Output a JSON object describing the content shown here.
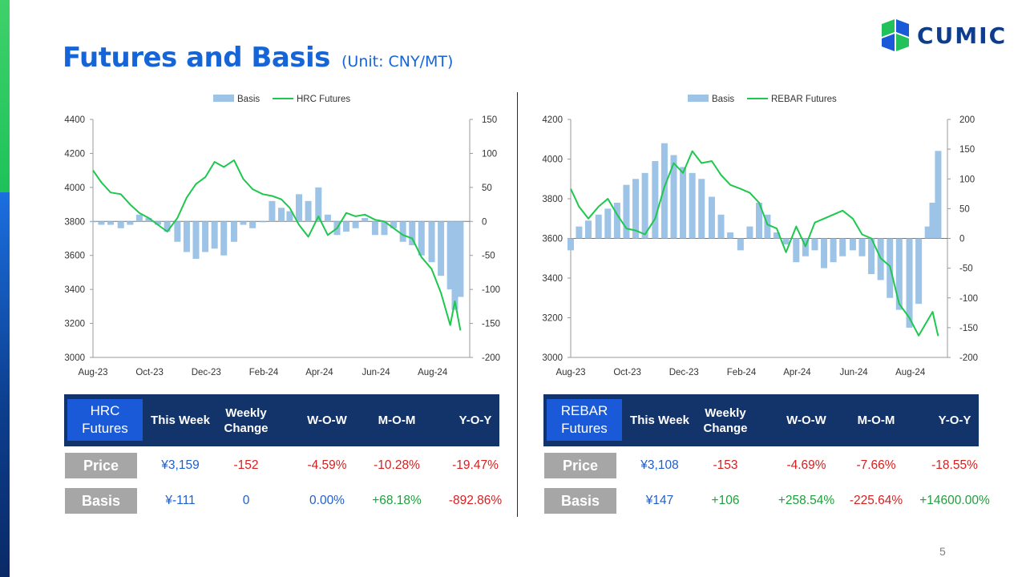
{
  "title": "Futures and Basis",
  "unit": "(Unit: CNY/MT)",
  "logo": {
    "text": "CUMIC"
  },
  "page_number": "5",
  "colors": {
    "basis": "#9dc3e6",
    "futures": "#1ec84e",
    "header_bg": "#13336b",
    "corner_bg": "#1a5ad8",
    "label_bg": "#a6a6a6",
    "blue": "#1f5fcc",
    "red": "#d62020",
    "green": "#1ea03c"
  },
  "chart_data": [
    {
      "type": "bar+line",
      "legend": [
        "Basis",
        "HRC Futures"
      ],
      "x_ticks": [
        "Aug-23",
        "Oct-23",
        "Dec-23",
        "Feb-24",
        "Apr-24",
        "Jun-24",
        "Aug-24"
      ],
      "y_left": {
        "ticks": [
          "4400",
          "4200",
          "4000",
          "3800",
          "3600",
          "3400",
          "3200",
          "3000"
        ],
        "range": [
          3000,
          4400
        ]
      },
      "y_right": {
        "ticks": [
          "150",
          "100",
          "50",
          "0",
          "-50",
          "-100",
          "-150",
          "-200"
        ],
        "range": [
          -200,
          150
        ]
      },
      "futures": [
        [
          "2023-08-01",
          4100
        ],
        [
          "2023-08-10",
          4030
        ],
        [
          "2023-08-20",
          3970
        ],
        [
          "2023-08-31",
          3960
        ],
        [
          "2023-09-10",
          3900
        ],
        [
          "2023-09-20",
          3850
        ],
        [
          "2023-09-30",
          3820
        ],
        [
          "2023-10-10",
          3780
        ],
        [
          "2023-10-20",
          3740
        ],
        [
          "2023-10-31",
          3820
        ],
        [
          "2023-11-10",
          3940
        ],
        [
          "2023-11-20",
          4020
        ],
        [
          "2023-11-30",
          4060
        ],
        [
          "2023-12-10",
          4150
        ],
        [
          "2023-12-20",
          4120
        ],
        [
          "2023-12-31",
          4160
        ],
        [
          "2024-01-10",
          4050
        ],
        [
          "2024-01-20",
          3990
        ],
        [
          "2024-01-31",
          3960
        ],
        [
          "2024-02-10",
          3950
        ],
        [
          "2024-02-20",
          3930
        ],
        [
          "2024-02-29",
          3880
        ],
        [
          "2024-03-10",
          3780
        ],
        [
          "2024-03-20",
          3710
        ],
        [
          "2024-03-31",
          3830
        ],
        [
          "2024-04-10",
          3720
        ],
        [
          "2024-04-20",
          3760
        ],
        [
          "2024-04-30",
          3850
        ],
        [
          "2024-05-10",
          3830
        ],
        [
          "2024-05-20",
          3840
        ],
        [
          "2024-05-31",
          3810
        ],
        [
          "2024-06-10",
          3800
        ],
        [
          "2024-06-20",
          3760
        ],
        [
          "2024-06-30",
          3720
        ],
        [
          "2024-07-10",
          3700
        ],
        [
          "2024-07-20",
          3590
        ],
        [
          "2024-07-31",
          3520
        ],
        [
          "2024-08-10",
          3380
        ],
        [
          "2024-08-20",
          3190
        ],
        [
          "2024-08-25",
          3330
        ],
        [
          "2024-08-31",
          3159
        ]
      ],
      "basis": [
        [
          "2023-08-01",
          0
        ],
        [
          "2023-08-10",
          -5
        ],
        [
          "2023-08-20",
          -5
        ],
        [
          "2023-08-31",
          -10
        ],
        [
          "2023-09-10",
          -5
        ],
        [
          "2023-09-20",
          10
        ],
        [
          "2023-09-30",
          5
        ],
        [
          "2023-10-10",
          -5
        ],
        [
          "2023-10-20",
          -15
        ],
        [
          "2023-10-31",
          -30
        ],
        [
          "2023-11-10",
          -45
        ],
        [
          "2023-11-20",
          -55
        ],
        [
          "2023-11-30",
          -45
        ],
        [
          "2023-12-10",
          -40
        ],
        [
          "2023-12-20",
          -50
        ],
        [
          "2023-12-31",
          -30
        ],
        [
          "2024-01-10",
          -5
        ],
        [
          "2024-01-20",
          -10
        ],
        [
          "2024-01-31",
          0
        ],
        [
          "2024-02-10",
          30
        ],
        [
          "2024-02-20",
          20
        ],
        [
          "2024-02-29",
          15
        ],
        [
          "2024-03-10",
          40
        ],
        [
          "2024-03-20",
          30
        ],
        [
          "2024-03-31",
          50
        ],
        [
          "2024-04-10",
          10
        ],
        [
          "2024-04-20",
          -20
        ],
        [
          "2024-04-30",
          -15
        ],
        [
          "2024-05-10",
          -10
        ],
        [
          "2024-05-20",
          5
        ],
        [
          "2024-05-31",
          -20
        ],
        [
          "2024-06-10",
          -20
        ],
        [
          "2024-06-20",
          -10
        ],
        [
          "2024-06-30",
          -30
        ],
        [
          "2024-07-10",
          -35
        ],
        [
          "2024-07-20",
          -50
        ],
        [
          "2024-07-31",
          -60
        ],
        [
          "2024-08-10",
          -80
        ],
        [
          "2024-08-20",
          -100
        ],
        [
          "2024-08-25",
          -130
        ],
        [
          "2024-08-31",
          -111
        ]
      ]
    },
    {
      "type": "bar+line",
      "legend": [
        "Basis",
        "REBAR Futures"
      ],
      "x_ticks": [
        "Aug-23",
        "Oct-23",
        "Dec-23",
        "Feb-24",
        "Apr-24",
        "Jun-24",
        "Aug-24"
      ],
      "y_left": {
        "ticks": [
          "4200",
          "4000",
          "3800",
          "3600",
          "3400",
          "3200",
          "3000"
        ],
        "range": [
          3000,
          4200
        ]
      },
      "y_right": {
        "ticks": [
          "200",
          "150",
          "100",
          "50",
          "0",
          "-50",
          "-100",
          "-150",
          "-200"
        ],
        "range": [
          -200,
          200
        ]
      },
      "futures": [
        [
          "2023-08-01",
          3850
        ],
        [
          "2023-08-10",
          3760
        ],
        [
          "2023-08-20",
          3700
        ],
        [
          "2023-08-31",
          3760
        ],
        [
          "2023-09-10",
          3800
        ],
        [
          "2023-09-20",
          3720
        ],
        [
          "2023-09-30",
          3650
        ],
        [
          "2023-10-10",
          3640
        ],
        [
          "2023-10-20",
          3620
        ],
        [
          "2023-10-31",
          3700
        ],
        [
          "2023-11-10",
          3860
        ],
        [
          "2023-11-20",
          3980
        ],
        [
          "2023-11-30",
          3930
        ],
        [
          "2023-12-10",
          4040
        ],
        [
          "2023-12-20",
          3980
        ],
        [
          "2023-12-31",
          3990
        ],
        [
          "2024-01-10",
          3920
        ],
        [
          "2024-01-20",
          3870
        ],
        [
          "2024-01-31",
          3850
        ],
        [
          "2024-02-10",
          3830
        ],
        [
          "2024-02-20",
          3780
        ],
        [
          "2024-02-29",
          3670
        ],
        [
          "2024-03-10",
          3650
        ],
        [
          "2024-03-20",
          3530
        ],
        [
          "2024-03-31",
          3660
        ],
        [
          "2024-04-10",
          3560
        ],
        [
          "2024-04-20",
          3680
        ],
        [
          "2024-04-30",
          3700
        ],
        [
          "2024-05-10",
          3720
        ],
        [
          "2024-05-20",
          3740
        ],
        [
          "2024-05-31",
          3700
        ],
        [
          "2024-06-10",
          3620
        ],
        [
          "2024-06-20",
          3600
        ],
        [
          "2024-06-30",
          3500
        ],
        [
          "2024-07-10",
          3460
        ],
        [
          "2024-07-20",
          3270
        ],
        [
          "2024-07-31",
          3200
        ],
        [
          "2024-08-10",
          3110
        ],
        [
          "2024-08-20",
          3190
        ],
        [
          "2024-08-25",
          3230
        ],
        [
          "2024-08-31",
          3108
        ]
      ],
      "basis": [
        [
          "2023-08-01",
          -20
        ],
        [
          "2023-08-10",
          20
        ],
        [
          "2023-08-20",
          30
        ],
        [
          "2023-08-31",
          40
        ],
        [
          "2023-09-10",
          50
        ],
        [
          "2023-09-20",
          60
        ],
        [
          "2023-09-30",
          90
        ],
        [
          "2023-10-10",
          100
        ],
        [
          "2023-10-20",
          110
        ],
        [
          "2023-10-31",
          130
        ],
        [
          "2023-11-10",
          160
        ],
        [
          "2023-11-20",
          140
        ],
        [
          "2023-11-30",
          120
        ],
        [
          "2023-12-10",
          110
        ],
        [
          "2023-12-20",
          100
        ],
        [
          "2023-12-31",
          70
        ],
        [
          "2024-01-10",
          40
        ],
        [
          "2024-01-20",
          10
        ],
        [
          "2024-01-31",
          -20
        ],
        [
          "2024-02-10",
          20
        ],
        [
          "2024-02-20",
          60
        ],
        [
          "2024-02-29",
          40
        ],
        [
          "2024-03-10",
          10
        ],
        [
          "2024-03-20",
          -10
        ],
        [
          "2024-03-31",
          -40
        ],
        [
          "2024-04-10",
          -30
        ],
        [
          "2024-04-20",
          -20
        ],
        [
          "2024-04-30",
          -50
        ],
        [
          "2024-05-10",
          -40
        ],
        [
          "2024-05-20",
          -30
        ],
        [
          "2024-05-31",
          -20
        ],
        [
          "2024-06-10",
          -30
        ],
        [
          "2024-06-20",
          -60
        ],
        [
          "2024-06-30",
          -70
        ],
        [
          "2024-07-10",
          -100
        ],
        [
          "2024-07-20",
          -120
        ],
        [
          "2024-07-31",
          -150
        ],
        [
          "2024-08-10",
          -110
        ],
        [
          "2024-08-20",
          20
        ],
        [
          "2024-08-25",
          60
        ],
        [
          "2024-08-31",
          147
        ]
      ]
    }
  ],
  "tables": [
    {
      "corner": "HRC\nFutures",
      "headers": [
        "This Week",
        "Weekly\nChange",
        "W-O-W",
        "M-O-M",
        "Y-O-Y"
      ],
      "rows": [
        {
          "label": "Price",
          "values": [
            "¥3,159",
            "-152",
            "-4.59%",
            "-10.28%",
            "-19.47%"
          ],
          "tones": [
            "blue",
            "red",
            "red",
            "red",
            "red"
          ]
        },
        {
          "label": "Basis",
          "values": [
            "¥-111",
            "0",
            "0.00%",
            "+68.18%",
            "-892.86%"
          ],
          "tones": [
            "blue",
            "blue",
            "blue",
            "green",
            "red"
          ]
        }
      ]
    },
    {
      "corner": "REBAR\nFutures",
      "headers": [
        "This Week",
        "Weekly\nChange",
        "W-O-W",
        "M-O-M",
        "Y-O-Y"
      ],
      "rows": [
        {
          "label": "Price",
          "values": [
            "¥3,108",
            "-153",
            "-4.69%",
            "-7.66%",
            "-18.55%"
          ],
          "tones": [
            "blue",
            "red",
            "red",
            "red",
            "red"
          ]
        },
        {
          "label": "Basis",
          "values": [
            "¥147",
            "+106",
            "+258.54%",
            "-225.64%",
            "+14600.00%"
          ],
          "tones": [
            "blue",
            "green",
            "green",
            "red",
            "green"
          ]
        }
      ]
    }
  ]
}
